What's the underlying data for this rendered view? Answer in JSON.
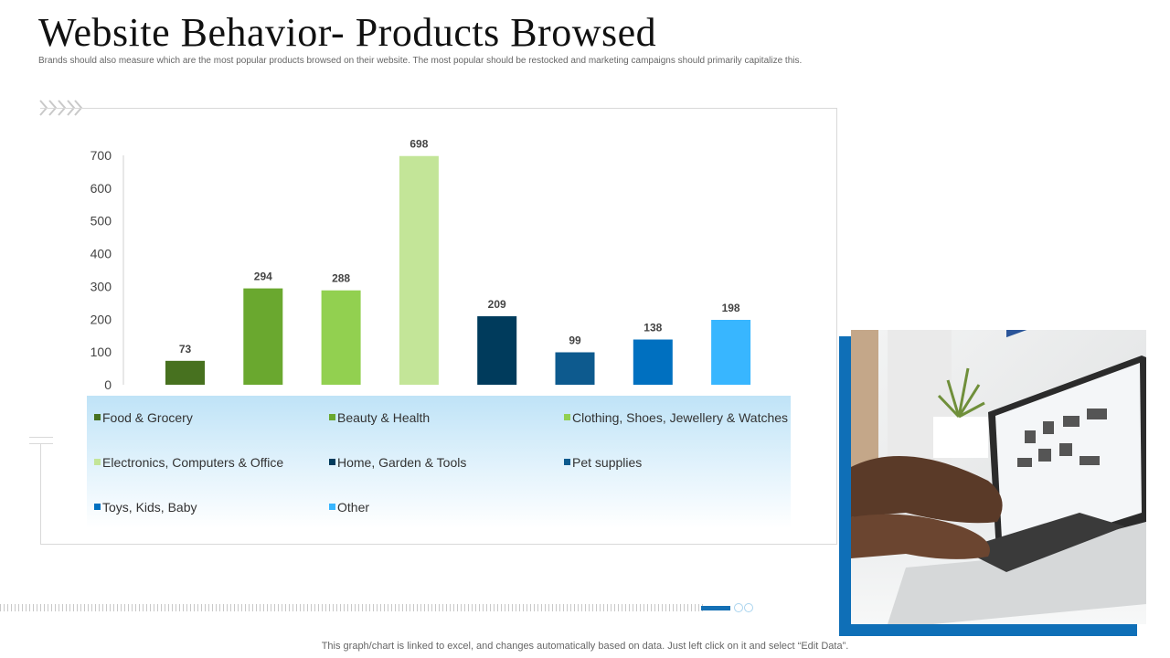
{
  "page": {
    "title": "Website Behavior- Products Browsed",
    "subtitle": "Brands should also measure which are the most popular products browsed on their website. The most popular should be restocked and marketing campaigns should primarily capitalize this.",
    "footer_note": "This graph/chart is linked to excel,  and changes automatically based on data. Just left click on it and select “Edit Data”."
  },
  "chart_data": {
    "type": "bar",
    "categories": [
      "Food & Grocery",
      "Beauty & Health",
      "Clothing, Shoes, Jewellery & Watches",
      "Electronics, Computers & Office",
      "Home, Garden & Tools",
      "Pet supplies",
      "Toys, Kids, Baby",
      "Other"
    ],
    "values": [
      73,
      294,
      288,
      698,
      209,
      99,
      138,
      198
    ],
    "colors": [
      "#47711f",
      "#6aa82f",
      "#92d050",
      "#c3e598",
      "#003b5c",
      "#0d5a8e",
      "#0070c0",
      "#38b6ff"
    ],
    "ylim": [
      0,
      700
    ],
    "yticks": [
      0,
      100,
      200,
      300,
      400,
      500,
      600,
      700
    ],
    "data_labels": true,
    "legend_position": "bottom",
    "grid": false
  },
  "colors": {
    "accent": "#0f6fb7",
    "legend_gradient_top": "#bfe3f7"
  },
  "icons": {
    "chevrons": "chevron-right-icon",
    "photo": "laptop-shopping-photo"
  }
}
